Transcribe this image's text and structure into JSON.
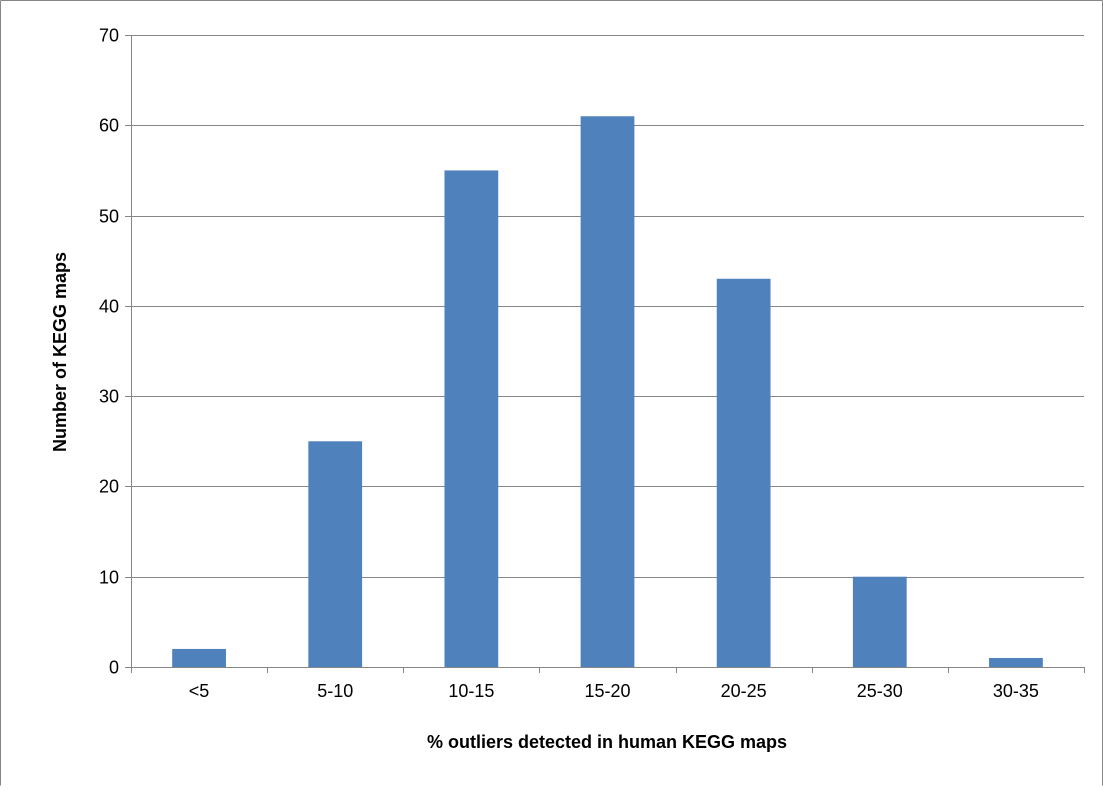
{
  "chart_data": {
    "type": "bar",
    "title": "",
    "xlabel": "% outliers detected in human KEGG maps",
    "ylabel": "Number of KEGG maps",
    "categories": [
      "<5",
      "5-10",
      "10-15",
      "15-20",
      "20-25",
      "25-30",
      "30-35"
    ],
    "values": [
      2,
      25,
      55,
      61,
      43,
      10,
      1
    ],
    "ylim": [
      0,
      70
    ],
    "yticks": [
      0,
      10,
      20,
      30,
      40,
      50,
      60,
      70
    ],
    "grid": true,
    "legend": "none",
    "bar_color": "#4f81bd",
    "grid_color": "#868686"
  }
}
